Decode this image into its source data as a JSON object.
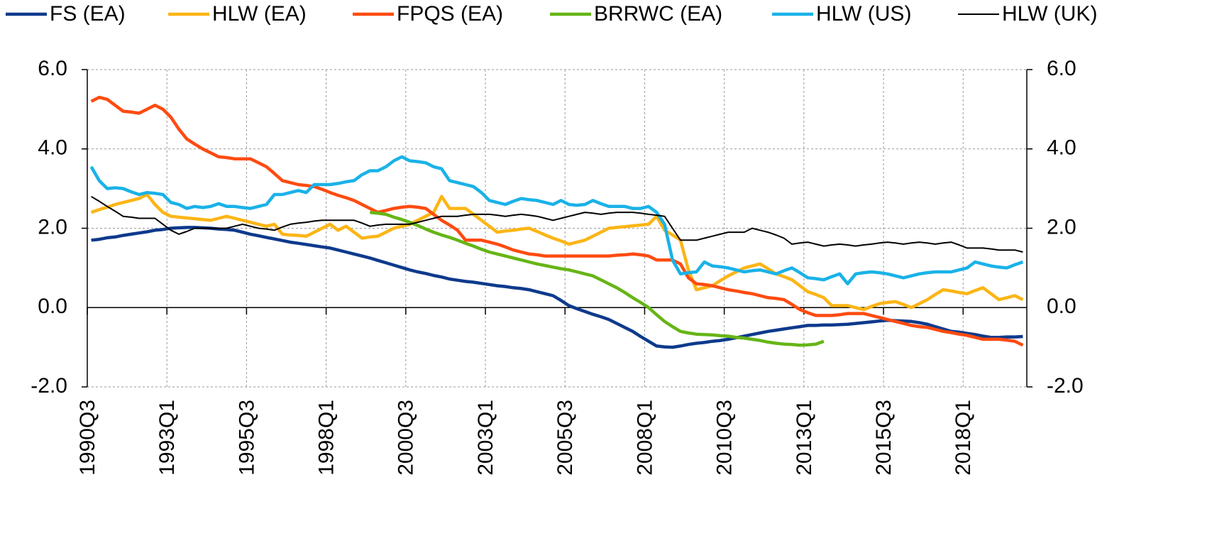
{
  "chart_data": {
    "type": "line",
    "legend": "top",
    "grid": true,
    "categories": [
      "1990Q3",
      null,
      null,
      null,
      null,
      null,
      null,
      null,
      null,
      null,
      "1993Q1",
      null,
      null,
      null,
      null,
      null,
      null,
      null,
      null,
      null,
      "1995Q3",
      null,
      null,
      null,
      null,
      null,
      null,
      null,
      null,
      null,
      "1998Q1",
      null,
      null,
      null,
      null,
      null,
      null,
      null,
      null,
      null,
      "2000Q3",
      null,
      null,
      null,
      null,
      null,
      null,
      null,
      null,
      null,
      "2003Q1",
      null,
      null,
      null,
      null,
      null,
      null,
      null,
      null,
      null,
      "2005Q3",
      null,
      null,
      null,
      null,
      null,
      null,
      null,
      null,
      null,
      "2008Q1",
      null,
      null,
      null,
      null,
      null,
      null,
      null,
      null,
      null,
      "2010Q3",
      null,
      null,
      null,
      null,
      null,
      null,
      null,
      null,
      null,
      "2013Q1",
      null,
      null,
      null,
      null,
      null,
      null,
      null,
      null,
      null,
      "2015Q3",
      null,
      null,
      null,
      null,
      null,
      null,
      null,
      null,
      null,
      "2018Q1",
      null,
      null,
      null,
      null,
      null,
      null,
      null
    ],
    "ylim": [
      -2,
      6
    ],
    "yticks": [
      {
        "value": -2,
        "label": "-2.0"
      },
      {
        "value": 0,
        "label": "0.0"
      },
      {
        "value": 2,
        "label": "2.0"
      },
      {
        "value": 4,
        "label": "4.0"
      },
      {
        "value": 6,
        "label": "6.0"
      }
    ],
    "y2lim": [
      -2,
      6
    ],
    "y2ticks": [
      {
        "value": -2,
        "label": "-2.0"
      },
      {
        "value": 0,
        "label": "0.0"
      },
      {
        "value": 2,
        "label": "2.0"
      },
      {
        "value": 4,
        "label": "4.0"
      },
      {
        "value": 6,
        "label": "6.0"
      }
    ],
    "series": [
      {
        "name": "FS (EA)",
        "color": "#0e3a8c",
        "line_width": 4.5,
        "values": [
          1.7,
          1.72,
          1.76,
          1.78,
          1.82,
          1.85,
          1.88,
          1.91,
          1.95,
          1.97,
          2.0,
          2.01,
          2.02,
          2.02,
          2.01,
          2.0,
          1.98,
          1.97,
          1.95,
          1.9,
          1.85,
          1.81,
          1.77,
          1.73,
          1.69,
          1.65,
          1.62,
          1.59,
          1.56,
          1.53,
          1.5,
          1.45,
          1.4,
          1.35,
          1.3,
          1.25,
          1.19,
          1.13,
          1.07,
          1.01,
          0.95,
          0.9,
          0.86,
          0.81,
          0.77,
          0.72,
          0.69,
          0.66,
          0.64,
          0.61,
          0.58,
          0.55,
          0.53,
          0.5,
          0.48,
          0.45,
          0.4,
          0.35,
          0.3,
          0.18,
          0.05,
          -0.03,
          -0.1,
          -0.17,
          -0.23,
          -0.3,
          -0.4,
          -0.5,
          -0.6,
          -0.73,
          -0.85,
          -0.97,
          -0.99,
          -1.0,
          -0.97,
          -0.93,
          -0.9,
          -0.88,
          -0.85,
          -0.83,
          -0.8,
          -0.76,
          -0.72,
          -0.68,
          -0.64,
          -0.6,
          -0.57,
          -0.54,
          -0.51,
          -0.48,
          -0.45,
          -0.45,
          -0.44,
          -0.44,
          -0.43,
          -0.42,
          -0.4,
          -0.38,
          -0.36,
          -0.34,
          -0.32,
          -0.33,
          -0.34,
          -0.35,
          -0.38,
          -0.42,
          -0.48,
          -0.54,
          -0.6,
          -0.62,
          -0.65,
          -0.68,
          -0.72,
          -0.75,
          -0.75,
          -0.74,
          -0.74,
          -0.73
        ]
      },
      {
        "name": "HLW (EA)",
        "color": "#fbb516",
        "line_width": 4.5,
        "values": [
          2.4,
          2.47,
          2.53,
          2.6,
          2.65,
          2.7,
          2.75,
          2.85,
          2.6,
          2.4,
          2.3,
          2.28,
          2.26,
          2.24,
          2.22,
          2.2,
          2.25,
          2.3,
          2.25,
          2.2,
          2.15,
          2.1,
          2.05,
          2.1,
          1.85,
          1.83,
          1.82,
          1.8,
          1.9,
          2.0,
          2.1,
          1.95,
          2.05,
          1.9,
          1.75,
          1.78,
          1.8,
          1.9,
          2.0,
          2.05,
          2.1,
          2.2,
          2.3,
          2.4,
          2.8,
          2.5,
          2.5,
          2.5,
          2.35,
          2.2,
          2.05,
          1.9,
          1.93,
          1.95,
          1.98,
          2.0,
          1.92,
          1.83,
          1.75,
          1.68,
          1.6,
          1.65,
          1.7,
          1.8,
          1.9,
          2.0,
          2.02,
          2.04,
          2.06,
          2.08,
          2.1,
          2.3,
          1.95,
          1.83,
          1.7,
          0.95,
          0.45,
          0.5,
          0.55,
          0.68,
          0.8,
          0.9,
          1.0,
          1.05,
          1.1,
          0.98,
          0.85,
          0.78,
          0.7,
          0.55,
          0.4,
          0.33,
          0.25,
          0.05,
          0.05,
          0.05,
          0.0,
          -0.05,
          0.03,
          0.1,
          0.13,
          0.15,
          0.08,
          0.0,
          0.1,
          0.2,
          0.33,
          0.45,
          0.42,
          0.38,
          0.35,
          0.43,
          0.5,
          0.35,
          0.2,
          0.25,
          0.3,
          0.2
        ]
      },
      {
        "name": "FPQS (EA)",
        "color": "#ff4b11",
        "line_width": 4.5,
        "values": [
          5.2,
          5.3,
          5.25,
          5.1,
          4.95,
          4.93,
          4.9,
          5.0,
          5.1,
          5.0,
          4.8,
          4.5,
          4.25,
          4.12,
          4.0,
          3.9,
          3.8,
          3.78,
          3.75,
          3.75,
          3.75,
          3.65,
          3.55,
          3.38,
          3.2,
          3.15,
          3.1,
          3.08,
          3.05,
          2.98,
          2.9,
          2.83,
          2.77,
          2.7,
          2.6,
          2.5,
          2.4,
          2.45,
          2.5,
          2.53,
          2.55,
          2.53,
          2.5,
          2.35,
          2.2,
          2.08,
          1.95,
          1.7,
          1.7,
          1.7,
          1.65,
          1.6,
          1.53,
          1.45,
          1.4,
          1.35,
          1.33,
          1.3,
          1.3,
          1.3,
          1.3,
          1.3,
          1.3,
          1.3,
          1.3,
          1.3,
          1.32,
          1.33,
          1.35,
          1.33,
          1.3,
          1.2,
          1.2,
          1.2,
          1.1,
          0.75,
          0.6,
          0.58,
          0.55,
          0.5,
          0.45,
          0.42,
          0.38,
          0.35,
          0.3,
          0.25,
          0.23,
          0.2,
          0.08,
          -0.05,
          -0.13,
          -0.2,
          -0.2,
          -0.2,
          -0.18,
          -0.15,
          -0.15,
          -0.15,
          -0.2,
          -0.25,
          -0.3,
          -0.35,
          -0.4,
          -0.45,
          -0.48,
          -0.5,
          -0.55,
          -0.6,
          -0.63,
          -0.67,
          -0.7,
          -0.75,
          -0.8,
          -0.8,
          -0.8,
          -0.82,
          -0.85,
          -0.95
        ]
      },
      {
        "name": "BRRWC (EA)",
        "color": "#66b516",
        "line_width": 4.5,
        "values": [
          null,
          null,
          null,
          null,
          null,
          null,
          null,
          null,
          null,
          null,
          null,
          null,
          null,
          null,
          null,
          null,
          null,
          null,
          null,
          null,
          null,
          null,
          null,
          null,
          null,
          null,
          null,
          null,
          null,
          null,
          null,
          null,
          null,
          null,
          null,
          2.4,
          2.38,
          2.35,
          2.28,
          2.22,
          2.15,
          2.07,
          1.98,
          1.9,
          1.83,
          1.77,
          1.7,
          1.62,
          1.55,
          1.47,
          1.4,
          1.35,
          1.3,
          1.25,
          1.2,
          1.15,
          1.1,
          1.06,
          1.02,
          0.98,
          0.95,
          0.9,
          0.85,
          0.8,
          0.7,
          0.6,
          0.5,
          0.38,
          0.25,
          0.13,
          0.0,
          -0.18,
          -0.35,
          -0.48,
          -0.6,
          -0.64,
          -0.67,
          -0.68,
          -0.69,
          -0.71,
          -0.72,
          -0.75,
          -0.77,
          -0.8,
          -0.83,
          -0.87,
          -0.9,
          -0.92,
          -0.93,
          -0.95,
          -0.94,
          -0.92,
          -0.85,
          null,
          null,
          null,
          null,
          null,
          null,
          null,
          null,
          null,
          null,
          null,
          null,
          null,
          null,
          null,
          null,
          null,
          null,
          null,
          null,
          null,
          null,
          null,
          null,
          null
        ]
      },
      {
        "name": "HLW (US)",
        "color": "#1ab2e8",
        "line_width": 4.5,
        "values": [
          3.55,
          3.2,
          3.0,
          3.02,
          3.0,
          2.92,
          2.85,
          2.9,
          2.88,
          2.85,
          2.65,
          2.6,
          2.5,
          2.55,
          2.52,
          2.55,
          2.62,
          2.55,
          2.55,
          2.52,
          2.5,
          2.55,
          2.6,
          2.85,
          2.85,
          2.9,
          2.95,
          2.9,
          3.1,
          3.1,
          3.1,
          3.13,
          3.17,
          3.2,
          3.35,
          3.45,
          3.45,
          3.55,
          3.7,
          3.8,
          3.7,
          3.68,
          3.65,
          3.55,
          3.5,
          3.2,
          3.15,
          3.1,
          3.05,
          2.9,
          2.7,
          2.65,
          2.6,
          2.68,
          2.75,
          2.72,
          2.7,
          2.65,
          2.6,
          2.7,
          2.6,
          2.58,
          2.6,
          2.7,
          2.62,
          2.55,
          2.55,
          2.55,
          2.5,
          2.5,
          2.55,
          2.4,
          2.1,
          1.2,
          0.85,
          0.88,
          0.9,
          1.15,
          1.05,
          1.03,
          1.0,
          0.95,
          0.9,
          0.93,
          0.95,
          0.9,
          0.85,
          0.93,
          1.0,
          0.88,
          0.75,
          0.73,
          0.7,
          0.78,
          0.85,
          0.6,
          0.85,
          0.88,
          0.9,
          0.88,
          0.85,
          0.8,
          0.75,
          0.8,
          0.85,
          0.88,
          0.9,
          0.9,
          0.9,
          0.95,
          1.0,
          1.15,
          1.1,
          1.05,
          1.02,
          1.0,
          1.08,
          1.15
        ]
      },
      {
        "name": "HLW (UK)",
        "color": "#000000",
        "line_width": 2,
        "values": [
          2.8,
          2.68,
          2.55,
          2.43,
          2.3,
          2.28,
          2.25,
          2.25,
          2.25,
          2.1,
          1.95,
          1.85,
          1.92,
          2.0,
          2.0,
          2.0,
          2.0,
          2.0,
          2.05,
          2.1,
          2.05,
          2.0,
          1.98,
          1.95,
          2.03,
          2.1,
          2.13,
          2.15,
          2.18,
          2.2,
          2.2,
          2.2,
          2.2,
          2.2,
          2.13,
          2.05,
          2.08,
          2.1,
          2.1,
          2.1,
          2.1,
          2.15,
          2.2,
          2.25,
          2.3,
          2.3,
          2.3,
          2.33,
          2.35,
          2.35,
          2.35,
          2.33,
          2.3,
          2.33,
          2.35,
          2.33,
          2.3,
          2.25,
          2.2,
          2.25,
          2.3,
          2.35,
          2.4,
          2.38,
          2.35,
          2.38,
          2.4,
          2.4,
          2.4,
          2.38,
          2.35,
          2.33,
          2.3,
          2.0,
          1.7,
          1.7,
          1.7,
          1.75,
          1.8,
          1.85,
          1.9,
          1.9,
          1.9,
          2.0,
          1.95,
          1.9,
          1.83,
          1.75,
          1.6,
          1.63,
          1.65,
          1.6,
          1.55,
          1.58,
          1.6,
          1.58,
          1.55,
          1.58,
          1.6,
          1.63,
          1.65,
          1.63,
          1.6,
          1.63,
          1.65,
          1.63,
          1.6,
          1.63,
          1.65,
          1.58,
          1.5,
          1.5,
          1.5,
          1.48,
          1.45,
          1.45,
          1.45,
          1.4
        ]
      }
    ]
  }
}
